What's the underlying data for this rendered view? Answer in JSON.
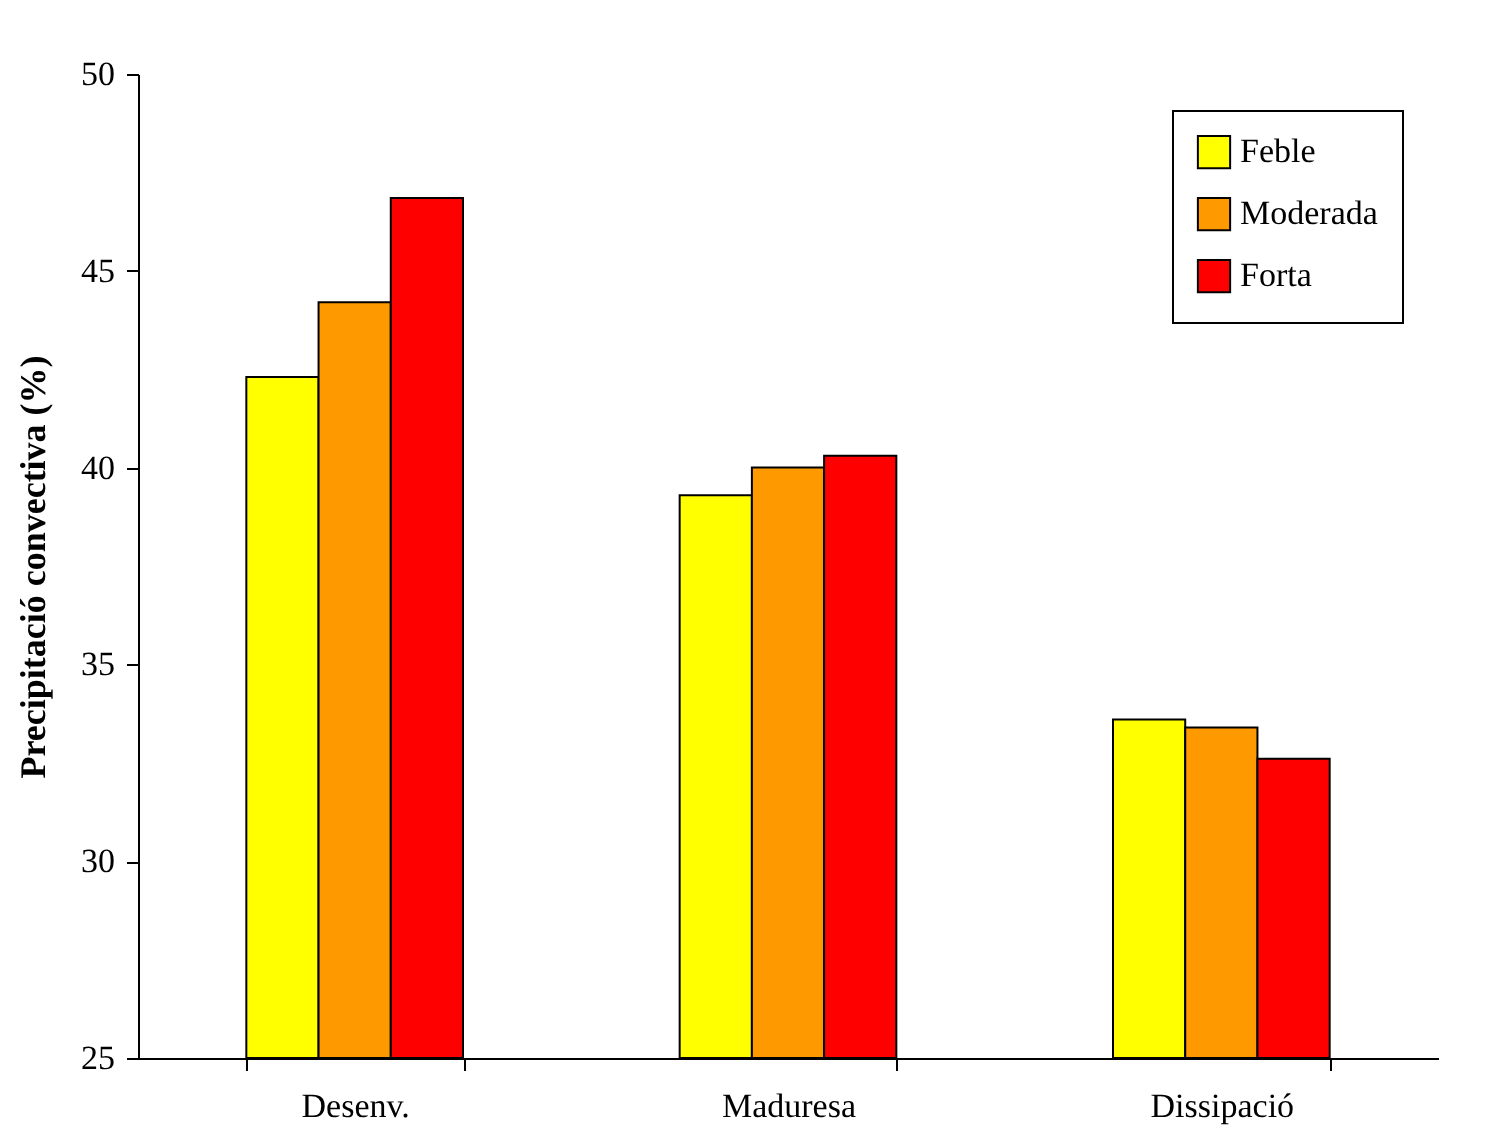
{
  "chart_data": {
    "type": "bar",
    "ylabel": "Precipitació convectiva (%)",
    "categories": [
      "Desenv.",
      "Maduresa",
      "Dissipació"
    ],
    "series": [
      {
        "name": "Feble",
        "color": "#ffff00",
        "values": [
          42.3,
          39.3,
          33.6
        ]
      },
      {
        "name": "Moderada",
        "color": "#ff9900",
        "values": [
          44.2,
          40.0,
          33.4
        ]
      },
      {
        "name": "Forta",
        "color": "#ff0000",
        "values": [
          46.85,
          40.3,
          32.6
        ]
      }
    ],
    "ylim": [
      25,
      50
    ],
    "yticks": [
      25,
      30,
      35,
      40,
      45,
      50
    ],
    "grid": false,
    "legend": "top right"
  }
}
